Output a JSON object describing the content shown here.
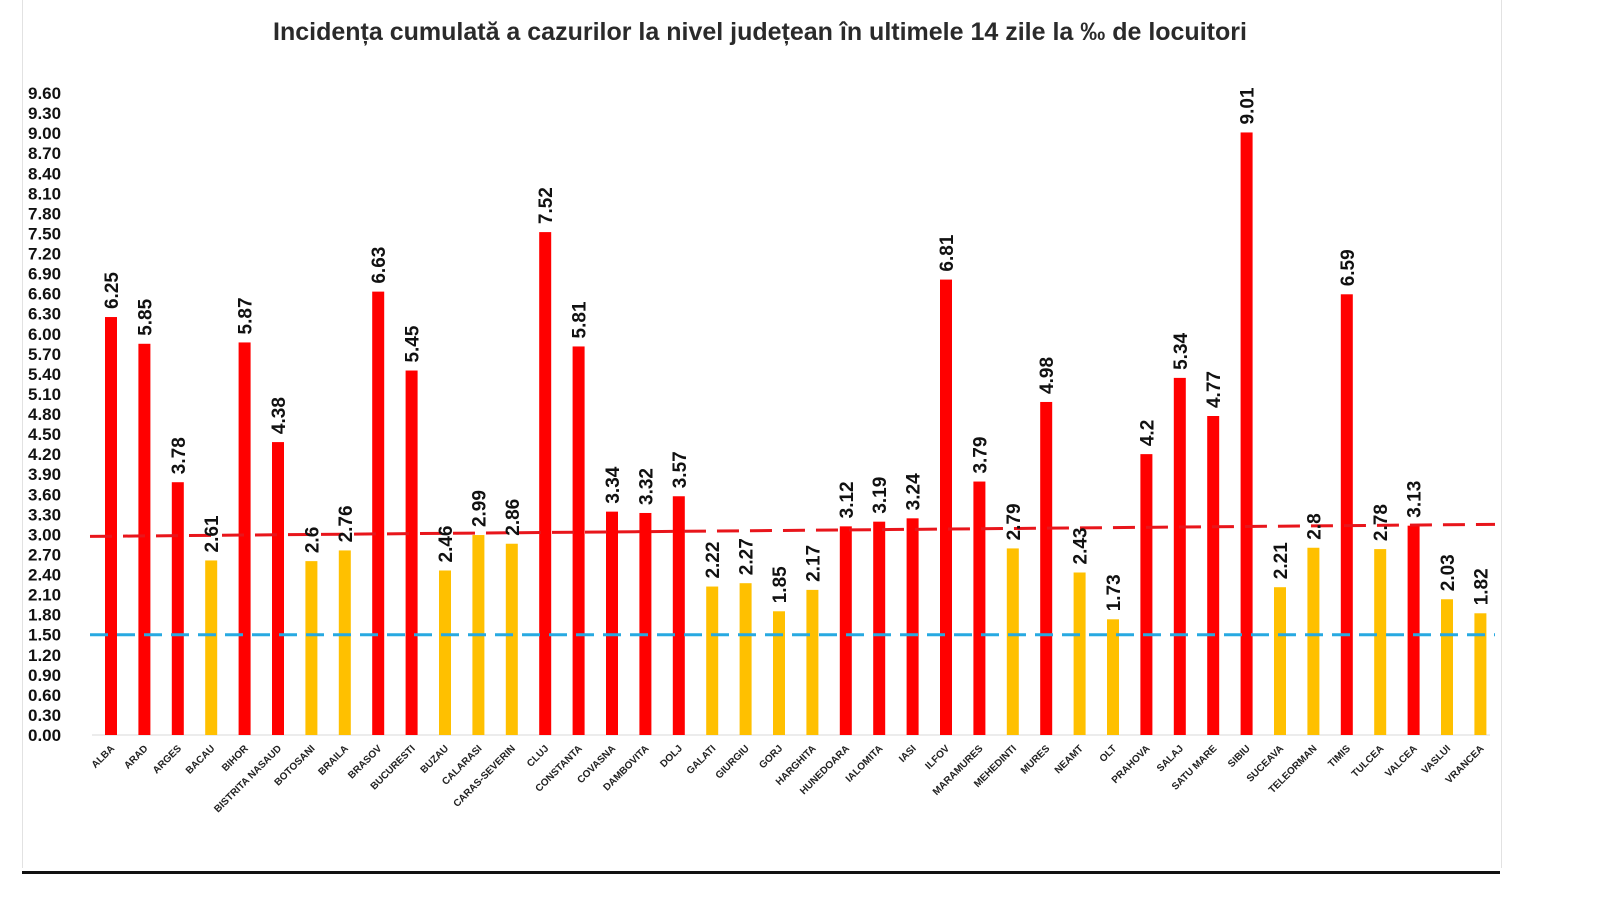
{
  "chart_data": {
    "type": "bar",
    "title": "Incidența cumulată a cazurilor la nivel județean în ultimele 14 zile la ‰ de locuitori",
    "xlabel": "",
    "ylabel": "",
    "ylim": [
      0,
      9.6
    ],
    "y_ticks": [
      "0.00",
      "0.30",
      "0.60",
      "0.90",
      "1.20",
      "1.50",
      "1.80",
      "2.10",
      "2.40",
      "2.70",
      "3.00",
      "3.30",
      "3.60",
      "3.90",
      "4.20",
      "4.50",
      "4.80",
      "5.10",
      "5.40",
      "5.70",
      "6.00",
      "6.30",
      "6.60",
      "6.90",
      "7.20",
      "7.50",
      "7.80",
      "8.10",
      "8.40",
      "8.70",
      "9.00",
      "9.30",
      "9.60"
    ],
    "categories": [
      "ALBA",
      "ARAD",
      "ARGES",
      "BACAU",
      "BIHOR",
      "BISTRITA NASAUD",
      "BOTOSANI",
      "BRAILA",
      "BRASOV",
      "BUCURESTI",
      "BUZAU",
      "CALARASI",
      "CARAS-SEVERIN",
      "CLUJ",
      "CONSTANTA",
      "COVASNA",
      "DAMBOVITA",
      "DOLJ",
      "GALATI",
      "GIURGIU",
      "GORJ",
      "HARGHITA",
      "HUNEDOARA",
      "IALOMITA",
      "IASI",
      "ILFOV",
      "MARAMURES",
      "MEHEDINTI",
      "MURES",
      "NEAMT",
      "OLT",
      "PRAHOVA",
      "SALAJ",
      "SATU MARE",
      "SIBIU",
      "SUCEAVA",
      "TELEORMAN",
      "TIMIS",
      "TULCEA",
      "VALCEA",
      "VASLUI",
      "VRANCEA"
    ],
    "values": [
      6.25,
      5.85,
      3.78,
      2.61,
      5.87,
      4.38,
      2.6,
      2.76,
      6.63,
      5.45,
      2.46,
      2.99,
      2.86,
      7.52,
      5.81,
      3.34,
      3.32,
      3.57,
      2.22,
      2.27,
      1.85,
      2.17,
      3.12,
      3.19,
      3.24,
      6.81,
      3.79,
      2.79,
      4.98,
      2.43,
      1.73,
      4.2,
      5.34,
      4.77,
      9.01,
      2.21,
      2.8,
      6.59,
      2.78,
      3.13,
      2.03,
      1.82
    ],
    "value_labels": [
      "6.25",
      "5.85",
      "3.78",
      "2.61",
      "5.87",
      "4.38",
      "2.6",
      "2.76",
      "6.63",
      "5.45",
      "2.46",
      "2.99",
      "2.86",
      "7.52",
      "5.81",
      "3.34",
      "3.32",
      "3.57",
      "2.22",
      "2.27",
      "1.85",
      "2.17",
      "3.12",
      "3.19",
      "3.24",
      "6.81",
      "3.79",
      "2.79",
      "4.98",
      "2.43",
      "1.73",
      "4.2",
      "5.34",
      "4.77",
      "9.01",
      "2.21",
      "2.8",
      "6.59",
      "2.78",
      "3.13",
      "2.03",
      "1.82"
    ],
    "bar_colors": [
      "red",
      "red",
      "red",
      "yellow",
      "red",
      "red",
      "yellow",
      "yellow",
      "red",
      "red",
      "yellow",
      "yellow",
      "yellow",
      "red",
      "red",
      "red",
      "red",
      "red",
      "yellow",
      "yellow",
      "yellow",
      "yellow",
      "red",
      "red",
      "red",
      "red",
      "red",
      "yellow",
      "red",
      "yellow",
      "yellow",
      "red",
      "red",
      "red",
      "red",
      "yellow",
      "yellow",
      "red",
      "yellow",
      "red",
      "yellow",
      "yellow"
    ],
    "reference_lines": [
      {
        "name": "threshold-high",
        "value_start": 2.97,
        "value_end": 3.15,
        "color": "#e8151b",
        "style": "dashed"
      },
      {
        "name": "threshold-low",
        "value_start": 1.5,
        "value_end": 1.5,
        "color": "#27a9e1",
        "style": "dashed"
      }
    ],
    "colors": {
      "red": "#ff0000",
      "yellow": "#ffc000"
    },
    "grid": false,
    "legend": "none"
  }
}
